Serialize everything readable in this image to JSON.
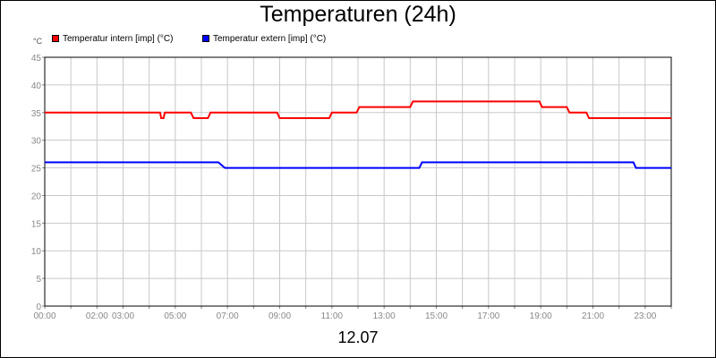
{
  "chart_data": {
    "type": "line",
    "title": "Temperaturen (24h)",
    "ylabel": "°C",
    "xlabel": "12.07",
    "ylim": [
      0,
      45
    ],
    "xlim_hours": [
      0,
      24
    ],
    "yticks": [
      0,
      5,
      10,
      15,
      20,
      25,
      30,
      35,
      40,
      45
    ],
    "xticks": [
      {
        "h": 0,
        "label": "00:00"
      },
      {
        "h": 2,
        "label": "02:00"
      },
      {
        "h": 3,
        "label": "03:00"
      },
      {
        "h": 5,
        "label": "05:00"
      },
      {
        "h": 7,
        "label": "07:00"
      },
      {
        "h": 9,
        "label": "09:00"
      },
      {
        "h": 11,
        "label": "11:00"
      },
      {
        "h": 13,
        "label": "13:00"
      },
      {
        "h": 15,
        "label": "15:00"
      },
      {
        "h": 17,
        "label": "17:00"
      },
      {
        "h": 19,
        "label": "19:00"
      },
      {
        "h": 21,
        "label": "21:00"
      },
      {
        "h": 23,
        "label": "23:00"
      }
    ],
    "grid": true,
    "series": [
      {
        "name": "Temperatur intern [imp] (°C)",
        "color": "#ff0000",
        "x": [
          0,
          4.42,
          4.46,
          4.55,
          4.6,
          5.6,
          5.7,
          6.25,
          6.35,
          8.9,
          9.0,
          10.9,
          11.0,
          11.95,
          12.05,
          14.0,
          14.1,
          18.95,
          19.05,
          20.0,
          20.1,
          20.75,
          20.85,
          24.0
        ],
        "values": [
          35,
          35,
          34,
          34,
          35,
          35,
          34,
          34,
          35,
          35,
          34,
          34,
          35,
          35,
          36,
          36,
          37,
          37,
          36,
          36,
          35,
          35,
          34,
          34
        ]
      },
      {
        "name": "Temperatur extern [imp] (°C)",
        "color": "#0000ff",
        "x": [
          0,
          6.65,
          6.9,
          14.35,
          14.45,
          22.55,
          22.65,
          24.0
        ],
        "values": [
          26,
          26,
          25,
          25,
          26,
          26,
          25,
          25
        ]
      }
    ]
  }
}
